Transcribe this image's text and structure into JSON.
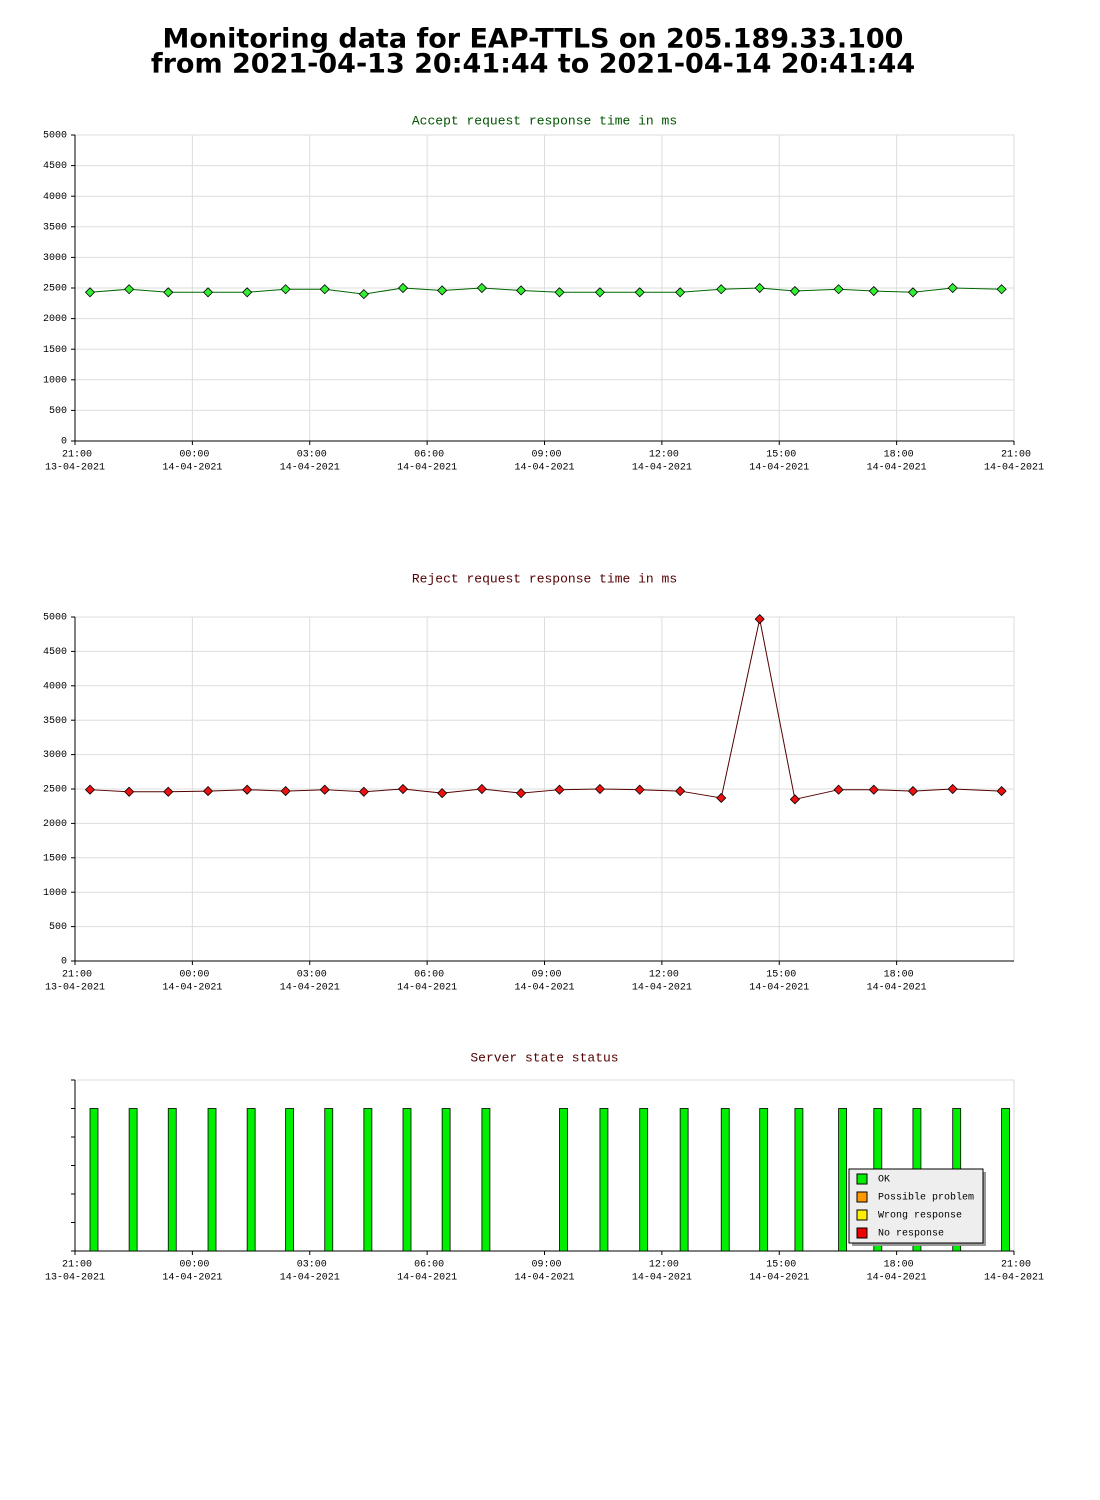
{
  "title_lines": [
    "Monitoring data for EAP-TTLS on 205.189.33.100",
    "from 2021-04-13 20:41:44 to 2021-04-14 20:41:44"
  ],
  "chart_data": [
    {
      "type": "line",
      "title": "Accept request response time in ms",
      "title_color": "#005500",
      "grid": true,
      "x": [
        "2021-04-13 21:23",
        "2021-04-13 22:23",
        "2021-04-13 23:23",
        "2021-04-14 00:24",
        "2021-04-14 01:24",
        "2021-04-14 02:23",
        "2021-04-14 03:23",
        "2021-04-14 04:23",
        "2021-04-14 05:23",
        "2021-04-14 06:23",
        "2021-04-14 07:24",
        "2021-04-14 08:24",
        "2021-04-14 09:23",
        "2021-04-14 10:25",
        "2021-04-14 11:26",
        "2021-04-14 12:28",
        "2021-04-14 13:31",
        "2021-04-14 14:30",
        "2021-04-14 15:24",
        "2021-04-14 16:31",
        "2021-04-14 17:25",
        "2021-04-14 18:25",
        "2021-04-14 19:26",
        "2021-04-14 20:41"
      ],
      "series": [
        {
          "color": "#33ee33",
          "line_color": "#006600",
          "values": [
            2430,
            2480,
            2430,
            2430,
            2430,
            2480,
            2480,
            2400,
            2500,
            2460,
            2500,
            2460,
            2430,
            2430,
            2430,
            2430,
            2480,
            2500,
            2450,
            2480,
            2450,
            2430,
            2500,
            2480
          ]
        }
      ],
      "xlim": [
        "2021-04-13 21:00",
        "2021-04-14 21:00"
      ],
      "xticks": [
        {
          "value": "2021-04-13 21:00",
          "label": [
            "21:00",
            "13-04-2021"
          ]
        },
        {
          "value": "2021-04-14 00:00",
          "label": [
            "00:00",
            "14-04-2021"
          ]
        },
        {
          "value": "2021-04-14 03:00",
          "label": [
            "03:00",
            "14-04-2021"
          ]
        },
        {
          "value": "2021-04-14 06:00",
          "label": [
            "06:00",
            "14-04-2021"
          ]
        },
        {
          "value": "2021-04-14 09:00",
          "label": [
            "09:00",
            "14-04-2021"
          ]
        },
        {
          "value": "2021-04-14 12:00",
          "label": [
            "12:00",
            "14-04-2021"
          ]
        },
        {
          "value": "2021-04-14 15:00",
          "label": [
            "15:00",
            "14-04-2021"
          ]
        },
        {
          "value": "2021-04-14 18:00",
          "label": [
            "18:00",
            "14-04-2021"
          ]
        },
        {
          "value": "2021-04-14 21:00",
          "label": [
            "21:00",
            "14-04-2021"
          ]
        }
      ],
      "ylim": [
        0,
        5000
      ],
      "yticks": [
        0,
        500,
        1000,
        1500,
        2000,
        2500,
        3000,
        3500,
        4000,
        4500,
        5000
      ],
      "show_ytick_labels": true
    },
    {
      "type": "line",
      "title": "Reject request response time in ms",
      "title_color": "#550000",
      "grid": true,
      "x": [
        "2021-04-13 21:23",
        "2021-04-13 22:23",
        "2021-04-13 23:23",
        "2021-04-14 00:24",
        "2021-04-14 01:24",
        "2021-04-14 02:23",
        "2021-04-14 03:23",
        "2021-04-14 04:23",
        "2021-04-14 05:23",
        "2021-04-14 06:23",
        "2021-04-14 07:24",
        "2021-04-14 08:24",
        "2021-04-14 09:23",
        "2021-04-14 10:25",
        "2021-04-14 11:26",
        "2021-04-14 12:28",
        "2021-04-14 13:31",
        "2021-04-14 14:30",
        "2021-04-14 15:24",
        "2021-04-14 16:31",
        "2021-04-14 17:25",
        "2021-04-14 18:25",
        "2021-04-14 19:26",
        "2021-04-14 20:41"
      ],
      "series": [
        {
          "color": "#ee1111",
          "line_color": "#550000",
          "values": [
            2490,
            2460,
            2460,
            2470,
            2490,
            2470,
            2490,
            2460,
            2500,
            2440,
            2500,
            2440,
            2490,
            2500,
            2490,
            2470,
            2370,
            4970,
            2350,
            2490,
            2490,
            2470,
            2500,
            2470
          ]
        }
      ],
      "xlim": [
        "2021-04-13 21:00",
        "2021-04-14 21:00"
      ],
      "xticks": [
        {
          "value": "2021-04-13 21:00",
          "label": [
            "21:00",
            "13-04-2021"
          ]
        },
        {
          "value": "2021-04-14 00:00",
          "label": [
            "00:00",
            "14-04-2021"
          ]
        },
        {
          "value": "2021-04-14 03:00",
          "label": [
            "03:00",
            "14-04-2021"
          ]
        },
        {
          "value": "2021-04-14 06:00",
          "label": [
            "06:00",
            "14-04-2021"
          ]
        },
        {
          "value": "2021-04-14 09:00",
          "label": [
            "09:00",
            "14-04-2021"
          ]
        },
        {
          "value": "2021-04-14 12:00",
          "label": [
            "12:00",
            "14-04-2021"
          ]
        },
        {
          "value": "2021-04-14 15:00",
          "label": [
            "15:00",
            "14-04-2021"
          ]
        },
        {
          "value": "2021-04-14 18:00",
          "label": [
            "18:00",
            "14-04-2021"
          ]
        }
      ],
      "ylim": [
        0,
        5000
      ],
      "yticks": [
        0,
        500,
        1000,
        1500,
        2000,
        2500,
        3000,
        3500,
        4000,
        4500,
        5000
      ],
      "show_ytick_labels": true
    },
    {
      "type": "bar",
      "title": "Server state status",
      "title_color": "#550000",
      "grid": false,
      "legend": "lower right",
      "x": [
        "2021-04-13 21:23",
        "2021-04-13 22:23",
        "2021-04-13 23:23",
        "2021-04-14 00:24",
        "2021-04-14 01:24",
        "2021-04-14 02:23",
        "2021-04-14 03:23",
        "2021-04-14 04:23",
        "2021-04-14 05:23",
        "2021-04-14 06:23",
        "2021-04-14 07:24",
        "2021-04-14 09:23",
        "2021-04-14 10:25",
        "2021-04-14 11:26",
        "2021-04-14 12:28",
        "2021-04-14 13:31",
        "2021-04-14 14:30",
        "2021-04-14 15:24",
        "2021-04-14 16:31",
        "2021-04-14 17:25",
        "2021-04-14 18:25",
        "2021-04-14 19:26",
        "2021-04-14 20:41"
      ],
      "series": [
        {
          "name": "OK",
          "color": "#00ee00",
          "values": [
            5,
            5,
            5,
            5,
            5,
            5,
            5,
            5,
            5,
            5,
            5,
            5,
            5,
            5,
            5,
            5,
            5,
            5,
            5,
            5,
            5,
            5,
            5
          ]
        },
        {
          "name": "Possible problem",
          "color": "#ff9900",
          "values": [
            null,
            null,
            null,
            null,
            null,
            null,
            null,
            null,
            null,
            null,
            null,
            null,
            null,
            null,
            null,
            null,
            null,
            null,
            null,
            null,
            null,
            null,
            null
          ]
        },
        {
          "name": "Wrong response",
          "color": "#ffee00",
          "values": [
            null,
            null,
            null,
            null,
            null,
            null,
            null,
            null,
            null,
            null,
            null,
            null,
            null,
            null,
            null,
            null,
            null,
            null,
            null,
            null,
            null,
            null,
            null
          ]
        },
        {
          "name": "No response",
          "color": "#ee0000",
          "values": [
            null,
            null,
            null,
            null,
            null,
            null,
            null,
            null,
            null,
            null,
            null,
            null,
            null,
            null,
            null,
            null,
            null,
            null,
            null,
            null,
            null,
            null,
            null
          ]
        }
      ],
      "xlim": [
        "2021-04-13 21:00",
        "2021-04-14 21:00"
      ],
      "xticks": [
        {
          "value": "2021-04-13 21:00",
          "label": [
            "21:00",
            "13-04-2021"
          ]
        },
        {
          "value": "2021-04-14 00:00",
          "label": [
            "00:00",
            "14-04-2021"
          ]
        },
        {
          "value": "2021-04-14 03:00",
          "label": [
            "03:00",
            "14-04-2021"
          ]
        },
        {
          "value": "2021-04-14 06:00",
          "label": [
            "06:00",
            "14-04-2021"
          ]
        },
        {
          "value": "2021-04-14 09:00",
          "label": [
            "09:00",
            "14-04-2021"
          ]
        },
        {
          "value": "2021-04-14 12:00",
          "label": [
            "12:00",
            "14-04-2021"
          ]
        },
        {
          "value": "2021-04-14 15:00",
          "label": [
            "15:00",
            "14-04-2021"
          ]
        },
        {
          "value": "2021-04-14 18:00",
          "label": [
            "18:00",
            "14-04-2021"
          ]
        },
        {
          "value": "2021-04-14 21:00",
          "label": [
            "21:00",
            "14-04-2021"
          ]
        }
      ],
      "ylim": [
        0,
        6
      ],
      "yticks": [
        0,
        1,
        2,
        3,
        4,
        5,
        6
      ],
      "show_ytick_labels": false
    }
  ]
}
